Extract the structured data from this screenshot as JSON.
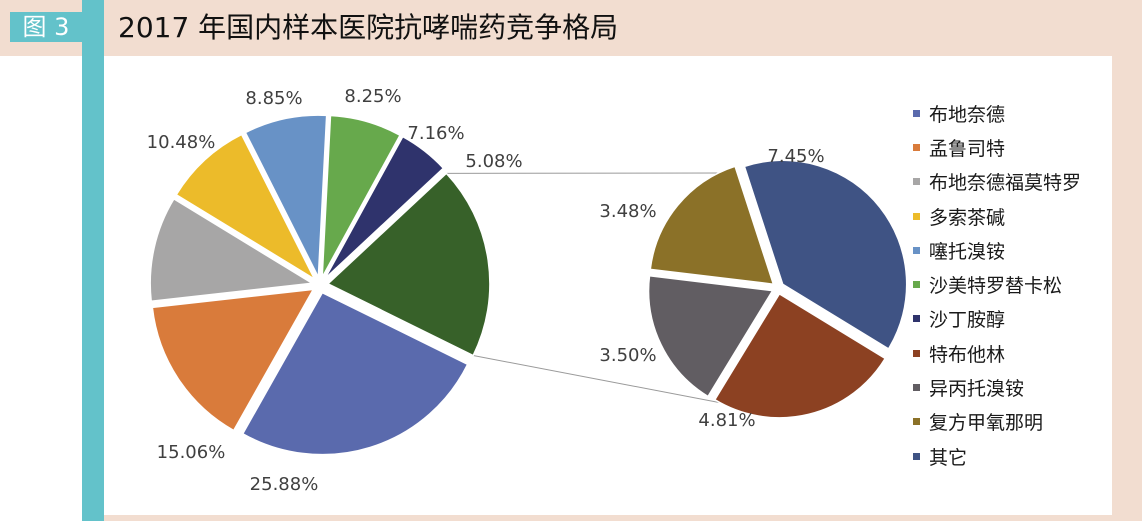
{
  "header": {
    "badge": "图 3",
    "title": "2017 年国内样本医院抗哮喘药竞争格局"
  },
  "chart_data": {
    "type": "pie",
    "subtype": "pie-of-pie",
    "main_pie": [
      {
        "label": "布地奈德",
        "value": 25.88,
        "color": "#5a6aad"
      },
      {
        "label": "孟鲁司特",
        "value": 15.06,
        "color": "#d97b3b"
      },
      {
        "label": "布地奈德福莫特罗",
        "value": 10.48,
        "color": "#a7a6a6"
      },
      {
        "label": "多索茶碱",
        "value": 8.85,
        "color": "#ecbb2a"
      },
      {
        "label": "噻托溴铵",
        "value": 8.25,
        "color": "#6892c6"
      },
      {
        "label": "沙美特罗替卡松",
        "value": 7.16,
        "color": "#67a94c"
      },
      {
        "label": "沙丁胺醇",
        "value": 5.08,
        "color": "#2f336c"
      }
    ],
    "secondary_pie": [
      {
        "label": "特布他林",
        "value": 4.81,
        "color": "#8c4122"
      },
      {
        "label": "异丙托溴铵",
        "value": 3.5,
        "color": "#615d62"
      },
      {
        "label": "复方甲氧那明",
        "value": 3.48,
        "color": "#8b7128"
      },
      {
        "label": "其它",
        "value": 7.45,
        "color": "#3f5384"
      }
    ],
    "other_group_color": "#376129",
    "labels": {
      "budesonide": "25.88%",
      "montelukast": "15.06%",
      "bud_formoterol": "10.48%",
      "doxofylline": "8.85%",
      "tiotropium": "8.25%",
      "salm_flut": "7.16%",
      "salbutamol": "5.08%",
      "terbutaline": "4.81%",
      "ipratropium": "3.50%",
      "methoxyphenamine": "3.48%",
      "others": "7.45%"
    },
    "legend": [
      {
        "label": "布地奈德",
        "color": "#5a6aad"
      },
      {
        "label": "孟鲁司特",
        "color": "#d97b3b"
      },
      {
        "label": "布地奈德福莫特罗",
        "color": "#a7a6a6"
      },
      {
        "label": "多索茶碱",
        "color": "#ecbb2a"
      },
      {
        "label": "噻托溴铵",
        "color": "#6892c6"
      },
      {
        "label": "沙美特罗替卡松",
        "color": "#67a94c"
      },
      {
        "label": "沙丁胺醇",
        "color": "#2f336c"
      },
      {
        "label": "特布他林",
        "color": "#8c4122"
      },
      {
        "label": "异丙托溴铵",
        "color": "#615d62"
      },
      {
        "label": "复方甲氧那明",
        "color": "#8b7128"
      },
      {
        "label": "其它",
        "color": "#3f5384"
      }
    ]
  }
}
